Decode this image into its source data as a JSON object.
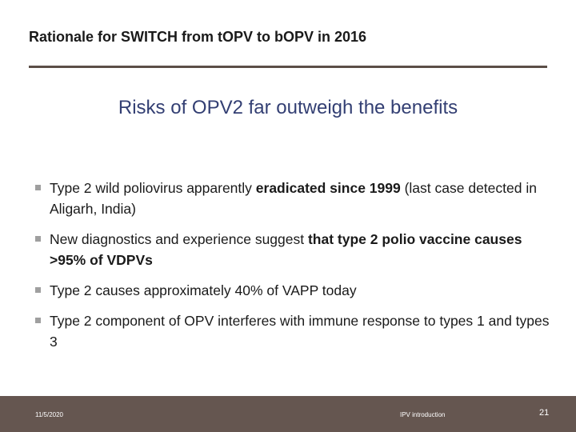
{
  "slide": {
    "title": "Rationale for SWITCH from tOPV to bOPV in 2016",
    "subtitle": "Risks of OPV2 far outweigh the benefits"
  },
  "bullets": [
    {
      "icon": "square-bullet-icon",
      "segments": [
        {
          "text": "Type 2 wild poliovirus apparently ",
          "bold": false
        },
        {
          "text": "eradicated since 1999",
          "bold": true
        },
        {
          "text": " (last case detected in Aligarh, India)",
          "bold": false
        }
      ]
    },
    {
      "icon": "square-bullet-icon",
      "segments": [
        {
          "text": "New diagnostics and experience suggest ",
          "bold": false
        },
        {
          "text": "that type 2 polio vaccine causes >95% of VDPVs",
          "bold": true
        }
      ]
    },
    {
      "icon": "square-bullet-icon",
      "segments": [
        {
          "text": "Type 2 causes approximately 40% of VAPP today",
          "bold": false
        }
      ]
    },
    {
      "icon": "square-bullet-icon",
      "segments": [
        {
          "text": "Type 2 component of OPV interferes with immune response to types 1 and types 3",
          "bold": false
        }
      ]
    }
  ],
  "footer": {
    "date": "11/5/2020",
    "center": "IPV introduction",
    "page": "21"
  },
  "colors": {
    "subtitle": "#333f73",
    "rule": "#5b4e47",
    "footer_bg": "#655650",
    "bullet_marker": "#9f9f9f"
  }
}
